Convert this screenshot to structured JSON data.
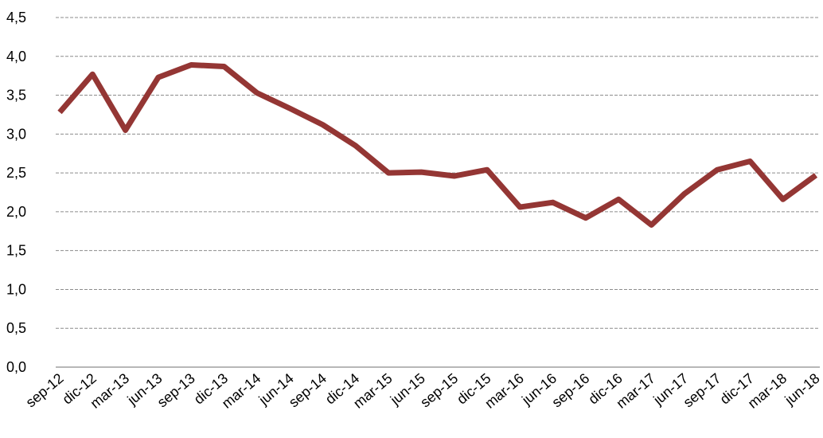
{
  "chart_data": {
    "type": "line",
    "categories": [
      "sep-12",
      "dic-12",
      "mar-13",
      "jun-13",
      "sep-13",
      "dic-13",
      "mar-14",
      "jun-14",
      "sep-14",
      "dic-14",
      "mar-15",
      "jun-15",
      "sep-15",
      "dic-15",
      "mar-16",
      "jun-16",
      "sep-16",
      "dic-16",
      "mar-17",
      "jun-17",
      "sep-17",
      "dic-17",
      "mar-18",
      "jun-18"
    ],
    "series": [
      {
        "color": "#943634",
        "values": [
          3.28,
          3.77,
          3.05,
          3.73,
          3.89,
          3.87,
          3.53,
          3.33,
          3.12,
          2.85,
          2.5,
          2.51,
          2.46,
          2.54,
          2.06,
          2.12,
          1.92,
          2.16,
          1.83,
          2.23,
          2.54,
          2.65,
          2.16,
          2.47
        ]
      }
    ],
    "ylim": [
      0,
      4.5
    ],
    "yticks": [
      {
        "value": 0,
        "label": "0,0"
      },
      {
        "value": 0.5,
        "label": "0,5"
      },
      {
        "value": 1,
        "label": "1,0"
      },
      {
        "value": 1.5,
        "label": "1,5"
      },
      {
        "value": 2,
        "label": "2,0"
      },
      {
        "value": 2.5,
        "label": "2,5"
      },
      {
        "value": 3,
        "label": "3,0"
      },
      {
        "value": 3.5,
        "label": "3,5"
      },
      {
        "value": 4,
        "label": "4,0"
      },
      {
        "value": 4.5,
        "label": "4,5"
      }
    ],
    "grid": true
  }
}
